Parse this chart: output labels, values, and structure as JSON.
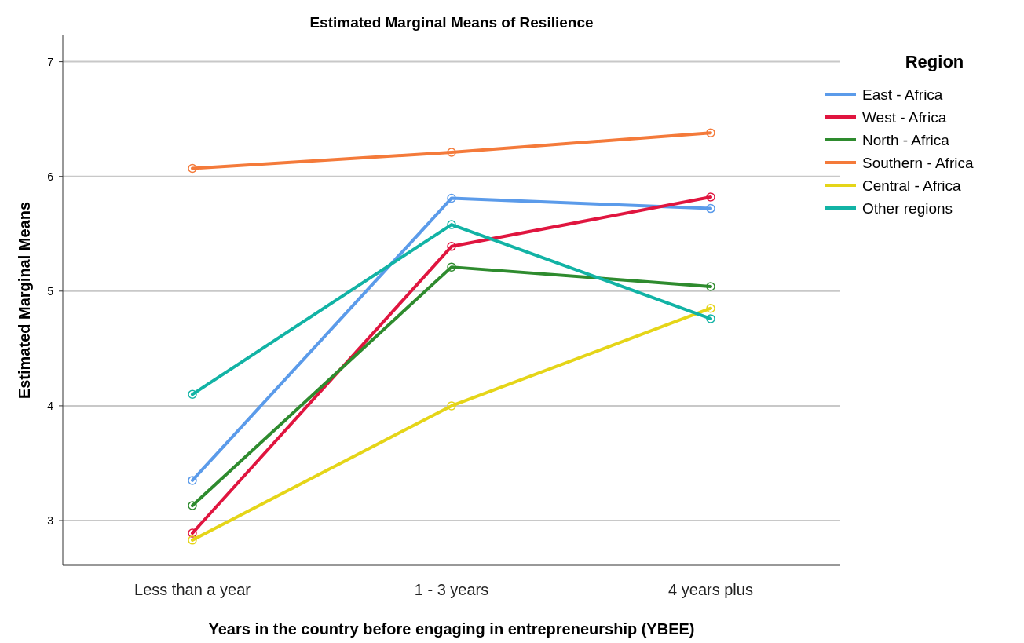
{
  "chart_data": {
    "type": "line",
    "title": "Estimated Marginal Means of Resilience",
    "xlabel": "Years in the country before engaging in entrepreneurship (YBEE)",
    "ylabel": "Estimated Marginal Means",
    "legend_title": "Region",
    "categories": [
      "Less than a year",
      "1 - 3 years",
      "4 years plus"
    ],
    "series": [
      {
        "name": "East - Africa",
        "color": "#5b9bea",
        "values": [
          3.35,
          5.81,
          5.72
        ]
      },
      {
        "name": "West - Africa",
        "color": "#e0153f",
        "values": [
          2.89,
          5.39,
          5.82
        ]
      },
      {
        "name": "North - Africa",
        "color": "#2e8b2e",
        "values": [
          3.13,
          5.21,
          5.04
        ]
      },
      {
        "name": "Southern - Africa",
        "color": "#f47a3a",
        "values": [
          6.07,
          6.21,
          6.38
        ]
      },
      {
        "name": "Central - Africa",
        "color": "#e5d518",
        "values": [
          2.83,
          4.0,
          4.85
        ]
      },
      {
        "name": "Other regions",
        "color": "#12b3a5",
        "values": [
          4.1,
          5.58,
          4.76
        ]
      }
    ],
    "ylim": [
      2.61,
      7.23
    ],
    "yticks": [
      3,
      4,
      5,
      6,
      7
    ],
    "grid": "y",
    "legend": "right",
    "marker": "circle",
    "line_style": "solid"
  }
}
